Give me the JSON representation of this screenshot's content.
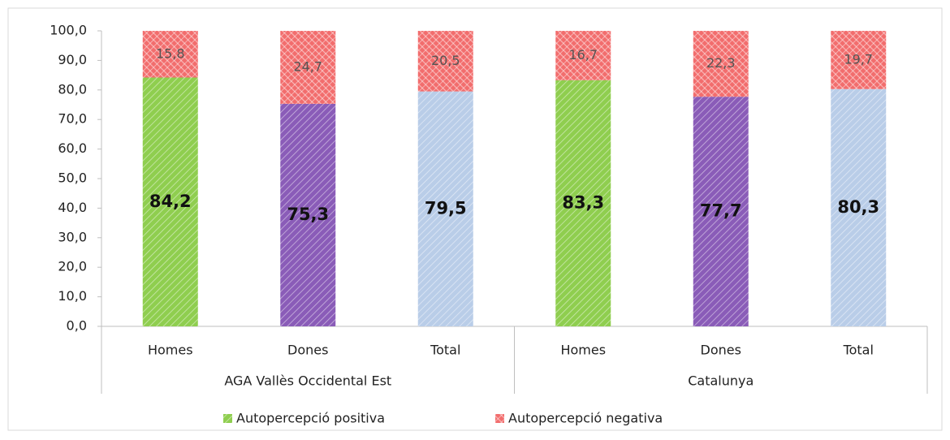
{
  "chart_data": {
    "type": "stacked_bar",
    "categories": [
      "Homes",
      "Dones",
      "Total",
      "Homes",
      "Dones",
      "Total"
    ],
    "groups": [
      {
        "label": "AGA Vallès Occidental Est",
        "size": 3
      },
      {
        "label": "Catalunya",
        "size": 3
      }
    ],
    "series": [
      {
        "name": "Autopercepció positiva",
        "color": "#8fce4f",
        "colors": [
          "#8fce4f",
          "#8a5cb8",
          "#b9cde8",
          "#8fce4f",
          "#8a5cb8",
          "#b9cde8"
        ],
        "values": [
          84.2,
          75.3,
          79.5,
          83.3,
          77.7,
          80.3
        ],
        "value_labels": [
          "84,2",
          "75,3",
          "79,5",
          "83,3",
          "77,7",
          "80,3"
        ]
      },
      {
        "name": "Autopercepció negativa",
        "color": "#f26d6d",
        "values": [
          15.8,
          24.7,
          20.5,
          16.7,
          22.3,
          19.7
        ],
        "value_labels": [
          "15,8",
          "24,7",
          "20,5",
          "16,7",
          "22,3",
          "19,7"
        ]
      }
    ],
    "ylim": [
      0,
      100
    ],
    "yticks": [
      {
        "value": 0,
        "label": "0,0"
      },
      {
        "value": 10,
        "label": "10,0"
      },
      {
        "value": 20,
        "label": "20,0"
      },
      {
        "value": 30,
        "label": "30,0"
      },
      {
        "value": 40,
        "label": "40,0"
      },
      {
        "value": 50,
        "label": "50,0"
      },
      {
        "value": 60,
        "label": "60,0"
      },
      {
        "value": 70,
        "label": "70,0"
      },
      {
        "value": 80,
        "label": "80,0"
      },
      {
        "value": 90,
        "label": "90,0"
      },
      {
        "value": 100,
        "label": "100,0"
      }
    ],
    "legend": "bottom"
  }
}
